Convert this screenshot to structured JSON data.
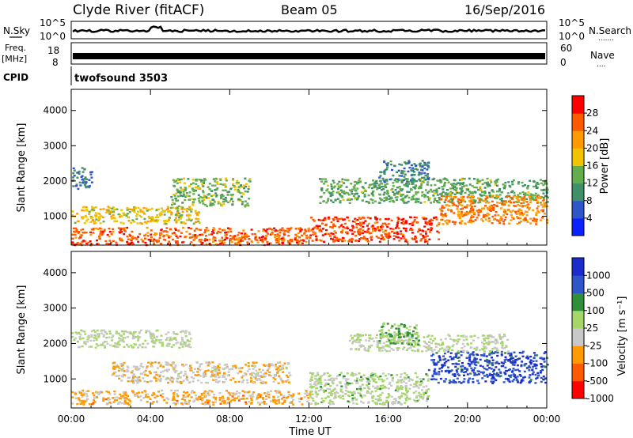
{
  "header": {
    "station": "Clyde River (fitACF)",
    "beam": "Beam 05",
    "date": "16/Sep/2016"
  },
  "panels": {
    "nsky": {
      "left_label": "N.Sky",
      "left_ticks": [
        "10^5",
        "10^0"
      ],
      "right_ticks": [
        "10^5",
        "10^0"
      ],
      "right_label": "N.Search",
      "right_dots": "......."
    },
    "freq": {
      "left_label_1": "Freq.",
      "left_label_2": "[MHz]",
      "left_ticks": [
        "18",
        "8"
      ],
      "right_ticks": [
        "60",
        "0"
      ],
      "right_label": "Nave",
      "right_dots": "...."
    },
    "cpid": {
      "label": "CPID",
      "value": "twofsound 3503"
    }
  },
  "colors": {
    "power_scale": [
      "#0a22ff",
      "#2f55c9",
      "#3f8f6a",
      "#63ad4e",
      "#f0c400",
      "#ff9a00",
      "#ff5a00",
      "#ff0000"
    ],
    "velocity_scale": [
      "#ff0000",
      "#ff5a00",
      "#ff9a00",
      "#c8c8c8",
      "#a6d66a",
      "#2f8f3a",
      "#2f55c9",
      "#1a2dcc"
    ]
  },
  "chart_data": [
    {
      "type": "heatmap",
      "name": "power",
      "ylabel": "Slant Range [km]",
      "xlabel": "",
      "x_ticks": [
        "00:00",
        "04:00",
        "08:00",
        "12:00",
        "16:00",
        "20:00",
        "00:00"
      ],
      "xlim": [
        0,
        24
      ],
      "y_ticks": [
        "1000",
        "2000",
        "3000",
        "4000"
      ],
      "ylim": [
        180,
        4600
      ],
      "colorbar": {
        "label": "Power [dB]",
        "ticks": [
          "4",
          "8",
          "12",
          "16",
          "20",
          "24",
          "28"
        ],
        "range": [
          0,
          32
        ]
      },
      "regions": [
        {
          "x": [
            0.0,
            12.0
          ],
          "y": [
            200,
            700
          ],
          "value": 26
        },
        {
          "x": [
            0.0,
            6.5
          ],
          "y": [
            800,
            1300
          ],
          "value": 18
        },
        {
          "x": [
            0.0,
            1.0
          ],
          "y": [
            1800,
            2400
          ],
          "value": 8
        },
        {
          "x": [
            5.0,
            9.0
          ],
          "y": [
            1300,
            2100
          ],
          "value": 14
        },
        {
          "x": [
            12.0,
            18.5
          ],
          "y": [
            300,
            1000
          ],
          "value": 27
        },
        {
          "x": [
            12.5,
            24.0
          ],
          "y": [
            1400,
            2100
          ],
          "value": 13
        },
        {
          "x": [
            18.5,
            24.0
          ],
          "y": [
            800,
            1600
          ],
          "value": 24
        },
        {
          "x": [
            15.5,
            18.0
          ],
          "y": [
            2000,
            2600
          ],
          "value": 9
        }
      ]
    },
    {
      "type": "heatmap",
      "name": "velocity",
      "ylabel": "Slant Range [km]",
      "xlabel": "Time UT",
      "x_ticks": [
        "00:00",
        "04:00",
        "08:00",
        "12:00",
        "16:00",
        "20:00",
        "00:00"
      ],
      "xlim": [
        0,
        24
      ],
      "y_ticks": [
        "1000",
        "2000",
        "3000",
        "4000"
      ],
      "ylim": [
        180,
        4600
      ],
      "colorbar": {
        "label": "Velocity [m s⁻¹]",
        "ticks": [
          "1000",
          "500",
          "100",
          "25",
          "-25",
          "-100",
          "-500",
          "-1000"
        ],
        "range": [
          -1000,
          1000
        ]
      },
      "regions": [
        {
          "x": [
            0.0,
            12.0
          ],
          "y": [
            300,
            700
          ],
          "value": -300
        },
        {
          "x": [
            0.0,
            6.0
          ],
          "y": [
            1900,
            2400
          ],
          "value": 0
        },
        {
          "x": [
            2.0,
            11.0
          ],
          "y": [
            900,
            1500
          ],
          "value": -200
        },
        {
          "x": [
            12.0,
            18.0
          ],
          "y": [
            300,
            1200
          ],
          "value": 60
        },
        {
          "x": [
            18.0,
            24.0
          ],
          "y": [
            900,
            1800
          ],
          "value": 700
        },
        {
          "x": [
            14.0,
            22.0
          ],
          "y": [
            1800,
            2300
          ],
          "value": 0
        },
        {
          "x": [
            15.5,
            17.5
          ],
          "y": [
            2000,
            2600
          ],
          "value": 250
        }
      ]
    }
  ]
}
